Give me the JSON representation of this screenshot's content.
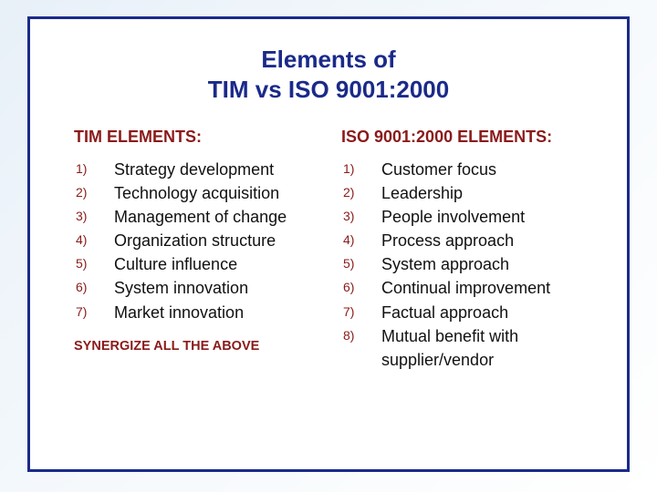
{
  "colors": {
    "title": "#1a2a8a",
    "heading": "#8b1a1a",
    "marker": "#8b1a1a",
    "item_text": "#111111",
    "footer": "#8b1a1a",
    "frame_border": "#1a2a8a",
    "frame_bg": "#ffffff"
  },
  "title_line1": "Elements of",
  "title_line2": "TIM vs ISO 9001:2000",
  "left": {
    "heading": "TIM ELEMENTS:",
    "items": [
      "Strategy development",
      "Technology acquisition",
      "Management of change",
      "Organization structure",
      "Culture influence",
      "System innovation",
      "Market innovation"
    ],
    "footer": "SYNERGIZE ALL THE ABOVE"
  },
  "right": {
    "heading": "ISO 9001:2000 ELEMENTS:",
    "items": [
      "Customer focus",
      "Leadership",
      "People involvement",
      "Process approach",
      "System approach",
      "Continual improvement",
      "Factual approach",
      "Mutual benefit with supplier/vendor"
    ]
  }
}
